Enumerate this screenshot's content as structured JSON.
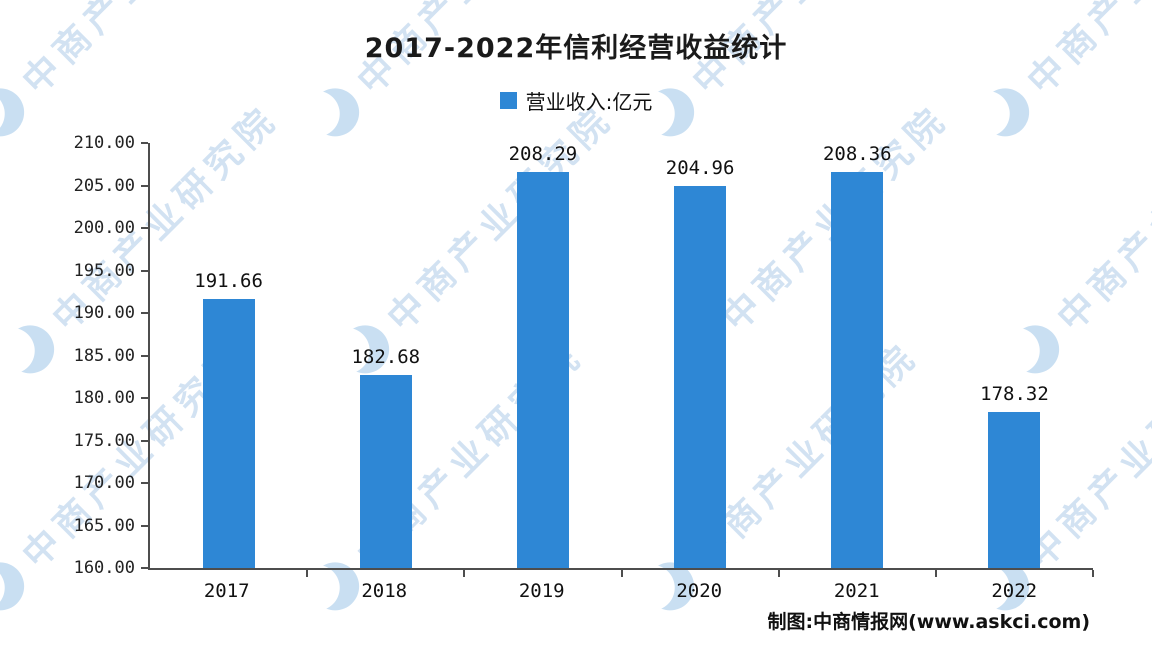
{
  "title": "2017-2022年信利经营收益统计",
  "legend": {
    "label": "营业收入:亿元"
  },
  "footer": {
    "credit": "制图:中商情报网(www.askci.com)"
  },
  "watermark": {
    "text": "中商产业研究院"
  },
  "colors": {
    "bar": "#2e87d5",
    "watermark": "#aecbe8",
    "axis": "#4d4d4d"
  },
  "chart_data": {
    "type": "bar",
    "title": "2017-2022年信利经营收益统计",
    "categories": [
      "2017",
      "2018",
      "2019",
      "2020",
      "2021",
      "2022"
    ],
    "values": [
      191.66,
      182.68,
      208.29,
      204.96,
      208.36,
      178.32
    ],
    "series_name": "营业收入:亿元",
    "ylim": [
      160,
      210
    ],
    "ytick_step": 5,
    "yticks": [
      "210.00",
      "205.00",
      "200.00",
      "195.00",
      "190.00",
      "185.00",
      "180.00",
      "175.00",
      "170.00",
      "165.00",
      "160.00"
    ],
    "grid": false,
    "legend_position": "top-center",
    "bar_color": "#2e87d5"
  }
}
